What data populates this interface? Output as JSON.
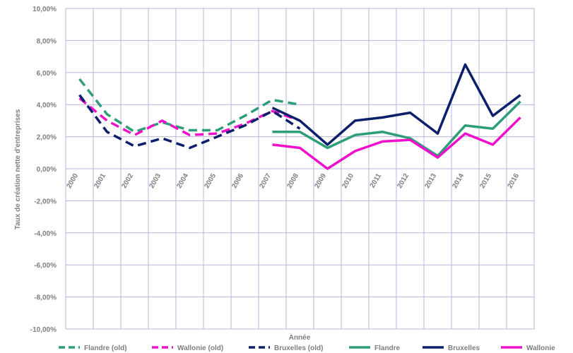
{
  "chart_data": {
    "type": "line",
    "xlabel": "Année",
    "ylabel": "Taux de création nette d'entreprises",
    "ylim": [
      -10,
      10
    ],
    "y_ticks": [
      "10,00%",
      "8,00%",
      "6,00%",
      "4,00%",
      "2,00%",
      "0,00%",
      "-2,00%",
      "-4,00%",
      "-6,00%",
      "-8,00%",
      "-10,00%"
    ],
    "y_tick_values": [
      10,
      8,
      6,
      4,
      2,
      0,
      -2,
      -4,
      -6,
      -8,
      -10
    ],
    "categories": [
      "2000",
      "2001",
      "2002",
      "2003",
      "2004",
      "2005",
      "2006",
      "2007",
      "2008",
      "2009",
      "2010",
      "2011",
      "2012",
      "2013",
      "2014",
      "2015",
      "2016"
    ],
    "grid": true,
    "legend_position": "bottom",
    "series": [
      {
        "name": "Flandre (old)",
        "color": "#2e9e7a",
        "dashed": true,
        "values": [
          5.6,
          3.4,
          2.3,
          2.9,
          2.4,
          2.4,
          3.3,
          4.3,
          4.0,
          null,
          null,
          null,
          null,
          null,
          null,
          null,
          null
        ]
      },
      {
        "name": "Wallonie (old)",
        "color": "#ee11cc",
        "dashed": true,
        "values": [
          4.4,
          3.0,
          2.1,
          3.0,
          2.1,
          2.2,
          2.8,
          3.6,
          3.0,
          null,
          null,
          null,
          null,
          null,
          null,
          null,
          null
        ]
      },
      {
        "name": "Bruxelles (old)",
        "color": "#0c1f6b",
        "dashed": true,
        "values": [
          4.6,
          2.3,
          1.4,
          1.9,
          1.3,
          2.0,
          2.7,
          3.6,
          2.5,
          null,
          null,
          null,
          null,
          null,
          null,
          null,
          null
        ]
      },
      {
        "name": "Flandre",
        "color": "#2e9e7a",
        "dashed": false,
        "values": [
          null,
          null,
          null,
          null,
          null,
          null,
          null,
          2.3,
          2.3,
          1.3,
          2.1,
          2.3,
          1.9,
          0.8,
          2.7,
          2.5,
          4.2
        ]
      },
      {
        "name": "Bruxelles",
        "color": "#0c1f6b",
        "dashed": false,
        "values": [
          null,
          null,
          null,
          null,
          null,
          null,
          null,
          3.8,
          3.0,
          1.5,
          3.0,
          3.2,
          3.5,
          2.2,
          6.5,
          3.3,
          4.6
        ]
      },
      {
        "name": "Wallonie",
        "color": "#ee11cc",
        "dashed": false,
        "values": [
          null,
          null,
          null,
          null,
          null,
          null,
          null,
          1.5,
          1.3,
          0.0,
          1.1,
          1.7,
          1.8,
          0.7,
          2.2,
          1.5,
          3.2
        ]
      }
    ]
  }
}
